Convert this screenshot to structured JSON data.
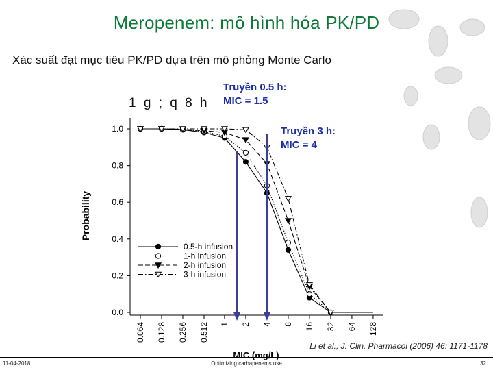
{
  "slide": {
    "title": "Meropenem: mô hình hóa PK/PD",
    "subtitle": "Xác suất đạt mục tiêu PK/PD dựa trên mô phỏng Monte Carlo",
    "dose": "1 g ; q 8 h",
    "callout_1": "Truyền 0.5 h:\nMIC = 1.5",
    "callout_2": "Truyền 3 h:\nMIC = 4",
    "citation": "Li et al., J. Clin. Pharmacol (2006) 46: 1171-1178",
    "footer_date": "11-04-2018",
    "footer_center": "Optimizing carbapenems use",
    "page_number": "32",
    "callout_color": "#1c2fa8",
    "title_color": "#0e7a3a"
  },
  "chart_data": {
    "type": "line",
    "xlabel": "MIC (mg/L)",
    "ylabel": "Probability",
    "x_scale": "log2",
    "x": [
      0.064,
      0.128,
      0.256,
      0.512,
      1,
      2,
      4,
      8,
      16,
      32,
      64,
      128
    ],
    "x_tick_labels": [
      "0.064",
      "0.128",
      "0.256",
      "0.512",
      "1",
      "2",
      "4",
      "8",
      "16",
      "32",
      "64",
      "128"
    ],
    "y_ticks": [
      "0.0",
      "0.2",
      "0.4",
      "0.6",
      "0.8",
      "1.0"
    ],
    "ylim": [
      0,
      1
    ],
    "grid": false,
    "legend_position": "bottom-left",
    "series": [
      {
        "name": "0.5-h infusion",
        "marker": "filled-circle",
        "dash": "solid",
        "values": [
          1.0,
          1.0,
          0.995,
          0.98,
          0.95,
          0.82,
          0.65,
          0.34,
          0.08,
          0.0,
          0.0,
          0.0
        ]
      },
      {
        "name": "1-h infusion",
        "marker": "open-circle",
        "dash": "dotted",
        "values": [
          1.0,
          1.0,
          0.997,
          0.985,
          0.96,
          0.87,
          0.69,
          0.38,
          0.1,
          0.0,
          0.0,
          0.0
        ]
      },
      {
        "name": "2-h infusion",
        "marker": "filled-triangle-down",
        "dash": "dashed",
        "values": [
          1.0,
          1.0,
          0.998,
          0.99,
          0.98,
          0.94,
          0.81,
          0.5,
          0.14,
          0.0,
          0.0,
          0.0
        ]
      },
      {
        "name": "3-h infusion",
        "marker": "open-triangle-down",
        "dash": "dash-dot",
        "values": [
          1.0,
          1.0,
          1.0,
          1.0,
          1.0,
          0.995,
          0.9,
          0.62,
          0.15,
          0.0,
          0.0,
          0.0
        ]
      }
    ],
    "reference_lines": [
      {
        "label_ref": "callout_1",
        "x": 1.5,
        "y_top": 0.88,
        "color": "#3a3f9a"
      },
      {
        "label_ref": "callout_2",
        "x": 4,
        "y_top": 0.97,
        "color": "#3a3f9a"
      }
    ]
  }
}
